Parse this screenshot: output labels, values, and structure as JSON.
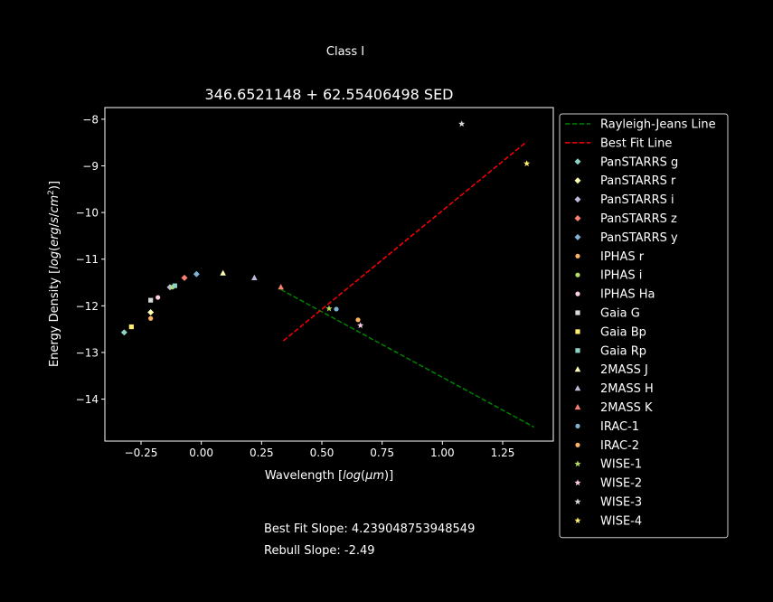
{
  "figure": {
    "suptitle": "Class I",
    "best_fit_text": "Best Fit Slope: 4.239048753948549",
    "rebull_text": "Rebull Slope: -2.49"
  },
  "chart_data": {
    "type": "scatter",
    "title": "346.6521148 + 62.55406498 SED",
    "xlabel": "Wavelength [log(μm)]",
    "ylabel": "Energy Density [log(erg/s/cm²)]",
    "xlim": [
      -0.4,
      1.46
    ],
    "ylim": [
      -14.9,
      -7.75
    ],
    "xticks": [
      -0.25,
      0.0,
      0.25,
      0.5,
      0.75,
      1.0,
      1.25
    ],
    "xtick_labels": [
      "−0.25",
      "0.00",
      "0.25",
      "0.50",
      "0.75",
      "1.00",
      "1.25"
    ],
    "yticks": [
      -14,
      -13,
      -12,
      -11,
      -10,
      -9,
      -8
    ],
    "ytick_labels": [
      "−14",
      "−13",
      "−12",
      "−11",
      "−10",
      "−9",
      "−8"
    ],
    "grid": false,
    "legend_position": "outside-right",
    "lines": [
      {
        "name": "Rayleigh-Jeans Line",
        "color": "#008000",
        "dash": "dashed",
        "x": [
          0.33,
          1.38
        ],
        "y": [
          -11.65,
          -14.6
        ]
      },
      {
        "name": "Best Fit Line",
        "color": "#ff0000",
        "dash": "dashed",
        "x": [
          0.34,
          1.35
        ],
        "y": [
          -12.75,
          -8.48
        ]
      }
    ],
    "series": [
      {
        "name": "PanSTARRS g",
        "marker": "diamond",
        "color": "#8dd3c7",
        "x": [
          -0.32
        ],
        "y": [
          -12.57
        ]
      },
      {
        "name": "PanSTARRS r",
        "marker": "diamond",
        "color": "#ffffb3",
        "x": [
          -0.21
        ],
        "y": [
          -12.14
        ]
      },
      {
        "name": "PanSTARRS i",
        "marker": "diamond",
        "color": "#bebada",
        "x": [
          -0.13
        ],
        "y": [
          -11.6
        ]
      },
      {
        "name": "PanSTARRS z",
        "marker": "diamond",
        "color": "#fb8072",
        "x": [
          -0.07
        ],
        "y": [
          -11.4
        ]
      },
      {
        "name": "PanSTARRS y",
        "marker": "diamond",
        "color": "#80b1d3",
        "x": [
          -0.02
        ],
        "y": [
          -11.32
        ]
      },
      {
        "name": "IPHAS r",
        "marker": "circle",
        "color": "#fdb462",
        "x": [
          -0.21
        ],
        "y": [
          -12.27
        ]
      },
      {
        "name": "IPHAS i",
        "marker": "circle",
        "color": "#b3de69",
        "x": [
          -0.12
        ],
        "y": [
          -11.6
        ]
      },
      {
        "name": "IPHAS Ha",
        "marker": "circle",
        "color": "#fccde5",
        "x": [
          -0.18
        ],
        "y": [
          -11.82
        ]
      },
      {
        "name": "Gaia G",
        "marker": "square",
        "color": "#d9d9d9",
        "x": [
          -0.21
        ],
        "y": [
          -11.88
        ]
      },
      {
        "name": "Gaia Bp",
        "marker": "square",
        "color": "#ffed6f",
        "x": [
          -0.29
        ],
        "y": [
          -12.45
        ]
      },
      {
        "name": "Gaia Rp",
        "marker": "square",
        "color": "#8dd3c7",
        "x": [
          -0.11
        ],
        "y": [
          -11.57
        ]
      },
      {
        "name": "2MASS J",
        "marker": "triangle",
        "color": "#ffffb3",
        "x": [
          0.09
        ],
        "y": [
          -11.3
        ]
      },
      {
        "name": "2MASS H",
        "marker": "triangle",
        "color": "#bebada",
        "x": [
          0.22
        ],
        "y": [
          -11.4
        ]
      },
      {
        "name": "2MASS K",
        "marker": "triangle",
        "color": "#fb8072",
        "x": [
          0.33
        ],
        "y": [
          -11.6
        ]
      },
      {
        "name": "IRAC-1",
        "marker": "circle",
        "color": "#80b1d3",
        "x": [
          0.56
        ],
        "y": [
          -12.07
        ]
      },
      {
        "name": "IRAC-2",
        "marker": "circle",
        "color": "#fdb462",
        "x": [
          0.65
        ],
        "y": [
          -12.3
        ]
      },
      {
        "name": "WISE-1",
        "marker": "star",
        "color": "#b3de69",
        "x": [
          0.53
        ],
        "y": [
          -12.06
        ]
      },
      {
        "name": "WISE-2",
        "marker": "star",
        "color": "#fccde5",
        "x": [
          0.66
        ],
        "y": [
          -12.42
        ]
      },
      {
        "name": "WISE-3",
        "marker": "star",
        "color": "#d9d9d9",
        "x": [
          1.08
        ],
        "y": [
          -8.1
        ]
      },
      {
        "name": "WISE-4",
        "marker": "star",
        "color": "#ffed6f",
        "x": [
          1.35
        ],
        "y": [
          -8.95
        ]
      }
    ]
  }
}
